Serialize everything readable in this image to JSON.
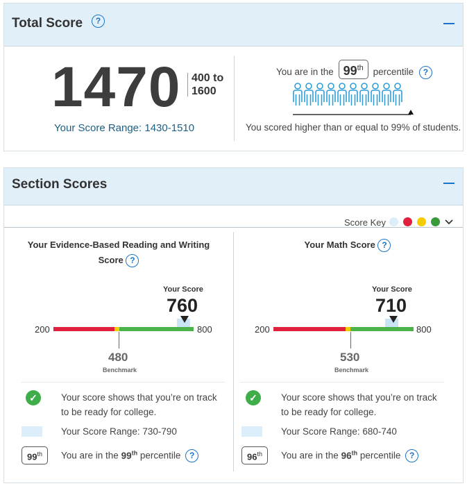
{
  "total": {
    "title": "Total Score",
    "score": "1470",
    "range_low": "400 to",
    "range_high": "1600",
    "score_range": "Your Score Range: 1430-1510",
    "percentile_prefix": "You are in the",
    "percentile_value": "99",
    "percentile_suffix_sup": "th",
    "percentile_suffix": "percentile",
    "higher_text": "You scored higher than or equal to 99% of students."
  },
  "sections": {
    "title": "Section Scores",
    "score_key_label": "Score Key",
    "key_colors": [
      "#dbeefa",
      "#e0203c",
      "#f5cc00",
      "#3a9a3a"
    ],
    "ebrw": {
      "title_line1": "Your Evidence-Based Reading and Writing",
      "title_line2": "Score",
      "your_score_label": "Your Score",
      "score": "760",
      "min": "200",
      "max": "800",
      "benchmark_value": "480",
      "benchmark_label": "Benchmark",
      "track_line1": "Your score shows that you’re on track",
      "track_line2": "to be ready for college.",
      "range_text": "Your Score Range: 730-790",
      "pct_value": "99",
      "pct_sup": "th",
      "pct_prefix": "You are in the",
      "pct_suffix": "percentile"
    },
    "math": {
      "title": "Your Math Score",
      "your_score_label": "Your Score",
      "score": "710",
      "min": "200",
      "max": "800",
      "benchmark_value": "530",
      "benchmark_label": "Benchmark",
      "track_line1": "Your score shows that you’re on track",
      "track_line2": "to be ready for college.",
      "range_text": "Your Score Range: 680-740",
      "pct_value": "96",
      "pct_sup": "th",
      "pct_prefix": "You are in the",
      "pct_suffix": "percentile"
    }
  },
  "icons": {
    "help": "?",
    "check": "✓",
    "chevron": "chevron-down-icon"
  }
}
